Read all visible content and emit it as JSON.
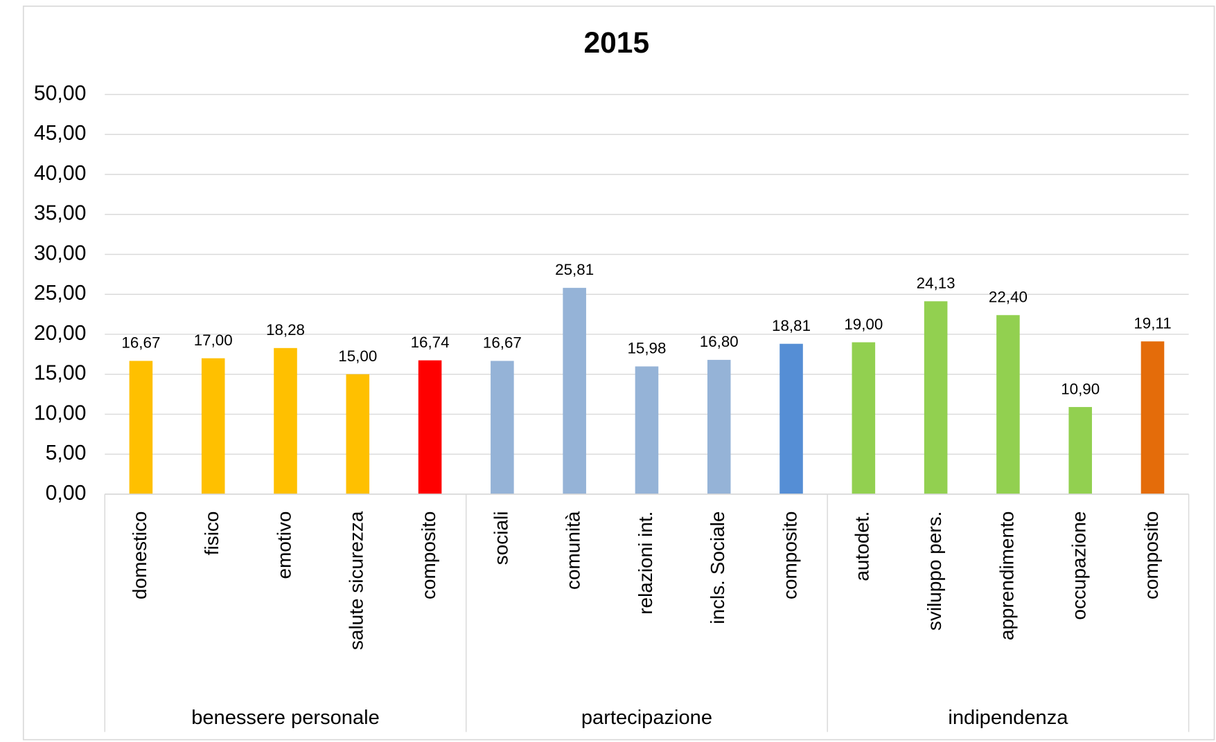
{
  "chart_data": {
    "type": "bar",
    "title": "2015",
    "ylim": [
      0,
      50
    ],
    "yticks": [
      {
        "value": 0,
        "label": "0,00"
      },
      {
        "value": 5,
        "label": "5,00"
      },
      {
        "value": 10,
        "label": "10,00"
      },
      {
        "value": 15,
        "label": "15,00"
      },
      {
        "value": 20,
        "label": "20,00"
      },
      {
        "value": 25,
        "label": "25,00"
      },
      {
        "value": 30,
        "label": "30,00"
      },
      {
        "value": 35,
        "label": "35,00"
      },
      {
        "value": 40,
        "label": "40,00"
      },
      {
        "value": 45,
        "label": "45,00"
      },
      {
        "value": 50,
        "label": "50,00"
      }
    ],
    "grid": true,
    "groups": [
      {
        "name": "benessere personale",
        "categories": [
          "domestico",
          "fisico",
          "emotivo",
          "salute sicurezza",
          "composito"
        ],
        "values": [
          16.67,
          17.0,
          18.28,
          15.0,
          16.74
        ],
        "value_labels": [
          "16,67",
          "17,00",
          "18,28",
          "15,00",
          "16,74"
        ],
        "colors": [
          "#ffc000",
          "#ffc000",
          "#ffc000",
          "#ffc000",
          "#ff0000"
        ]
      },
      {
        "name": "partecipazione",
        "categories": [
          "sociali",
          "comunità",
          "relazioni int.",
          "incls. Sociale",
          "composito"
        ],
        "values": [
          16.67,
          25.81,
          15.98,
          16.8,
          18.81
        ],
        "value_labels": [
          "16,67",
          "25,81",
          "15,98",
          "16,80",
          "18,81"
        ],
        "colors": [
          "#95b3d7",
          "#95b3d7",
          "#95b3d7",
          "#95b3d7",
          "#558ed5"
        ]
      },
      {
        "name": "indipendenza",
        "categories": [
          "autodet.",
          "sviluppo pers.",
          "apprendimento",
          "occupazione",
          "composito"
        ],
        "values": [
          19.0,
          24.13,
          22.4,
          10.9,
          19.11
        ],
        "value_labels": [
          "19,00",
          "24,13",
          "22,40",
          "10,90",
          "19,11"
        ],
        "colors": [
          "#92d050",
          "#92d050",
          "#92d050",
          "#92d050",
          "#e46c0a"
        ]
      }
    ]
  }
}
